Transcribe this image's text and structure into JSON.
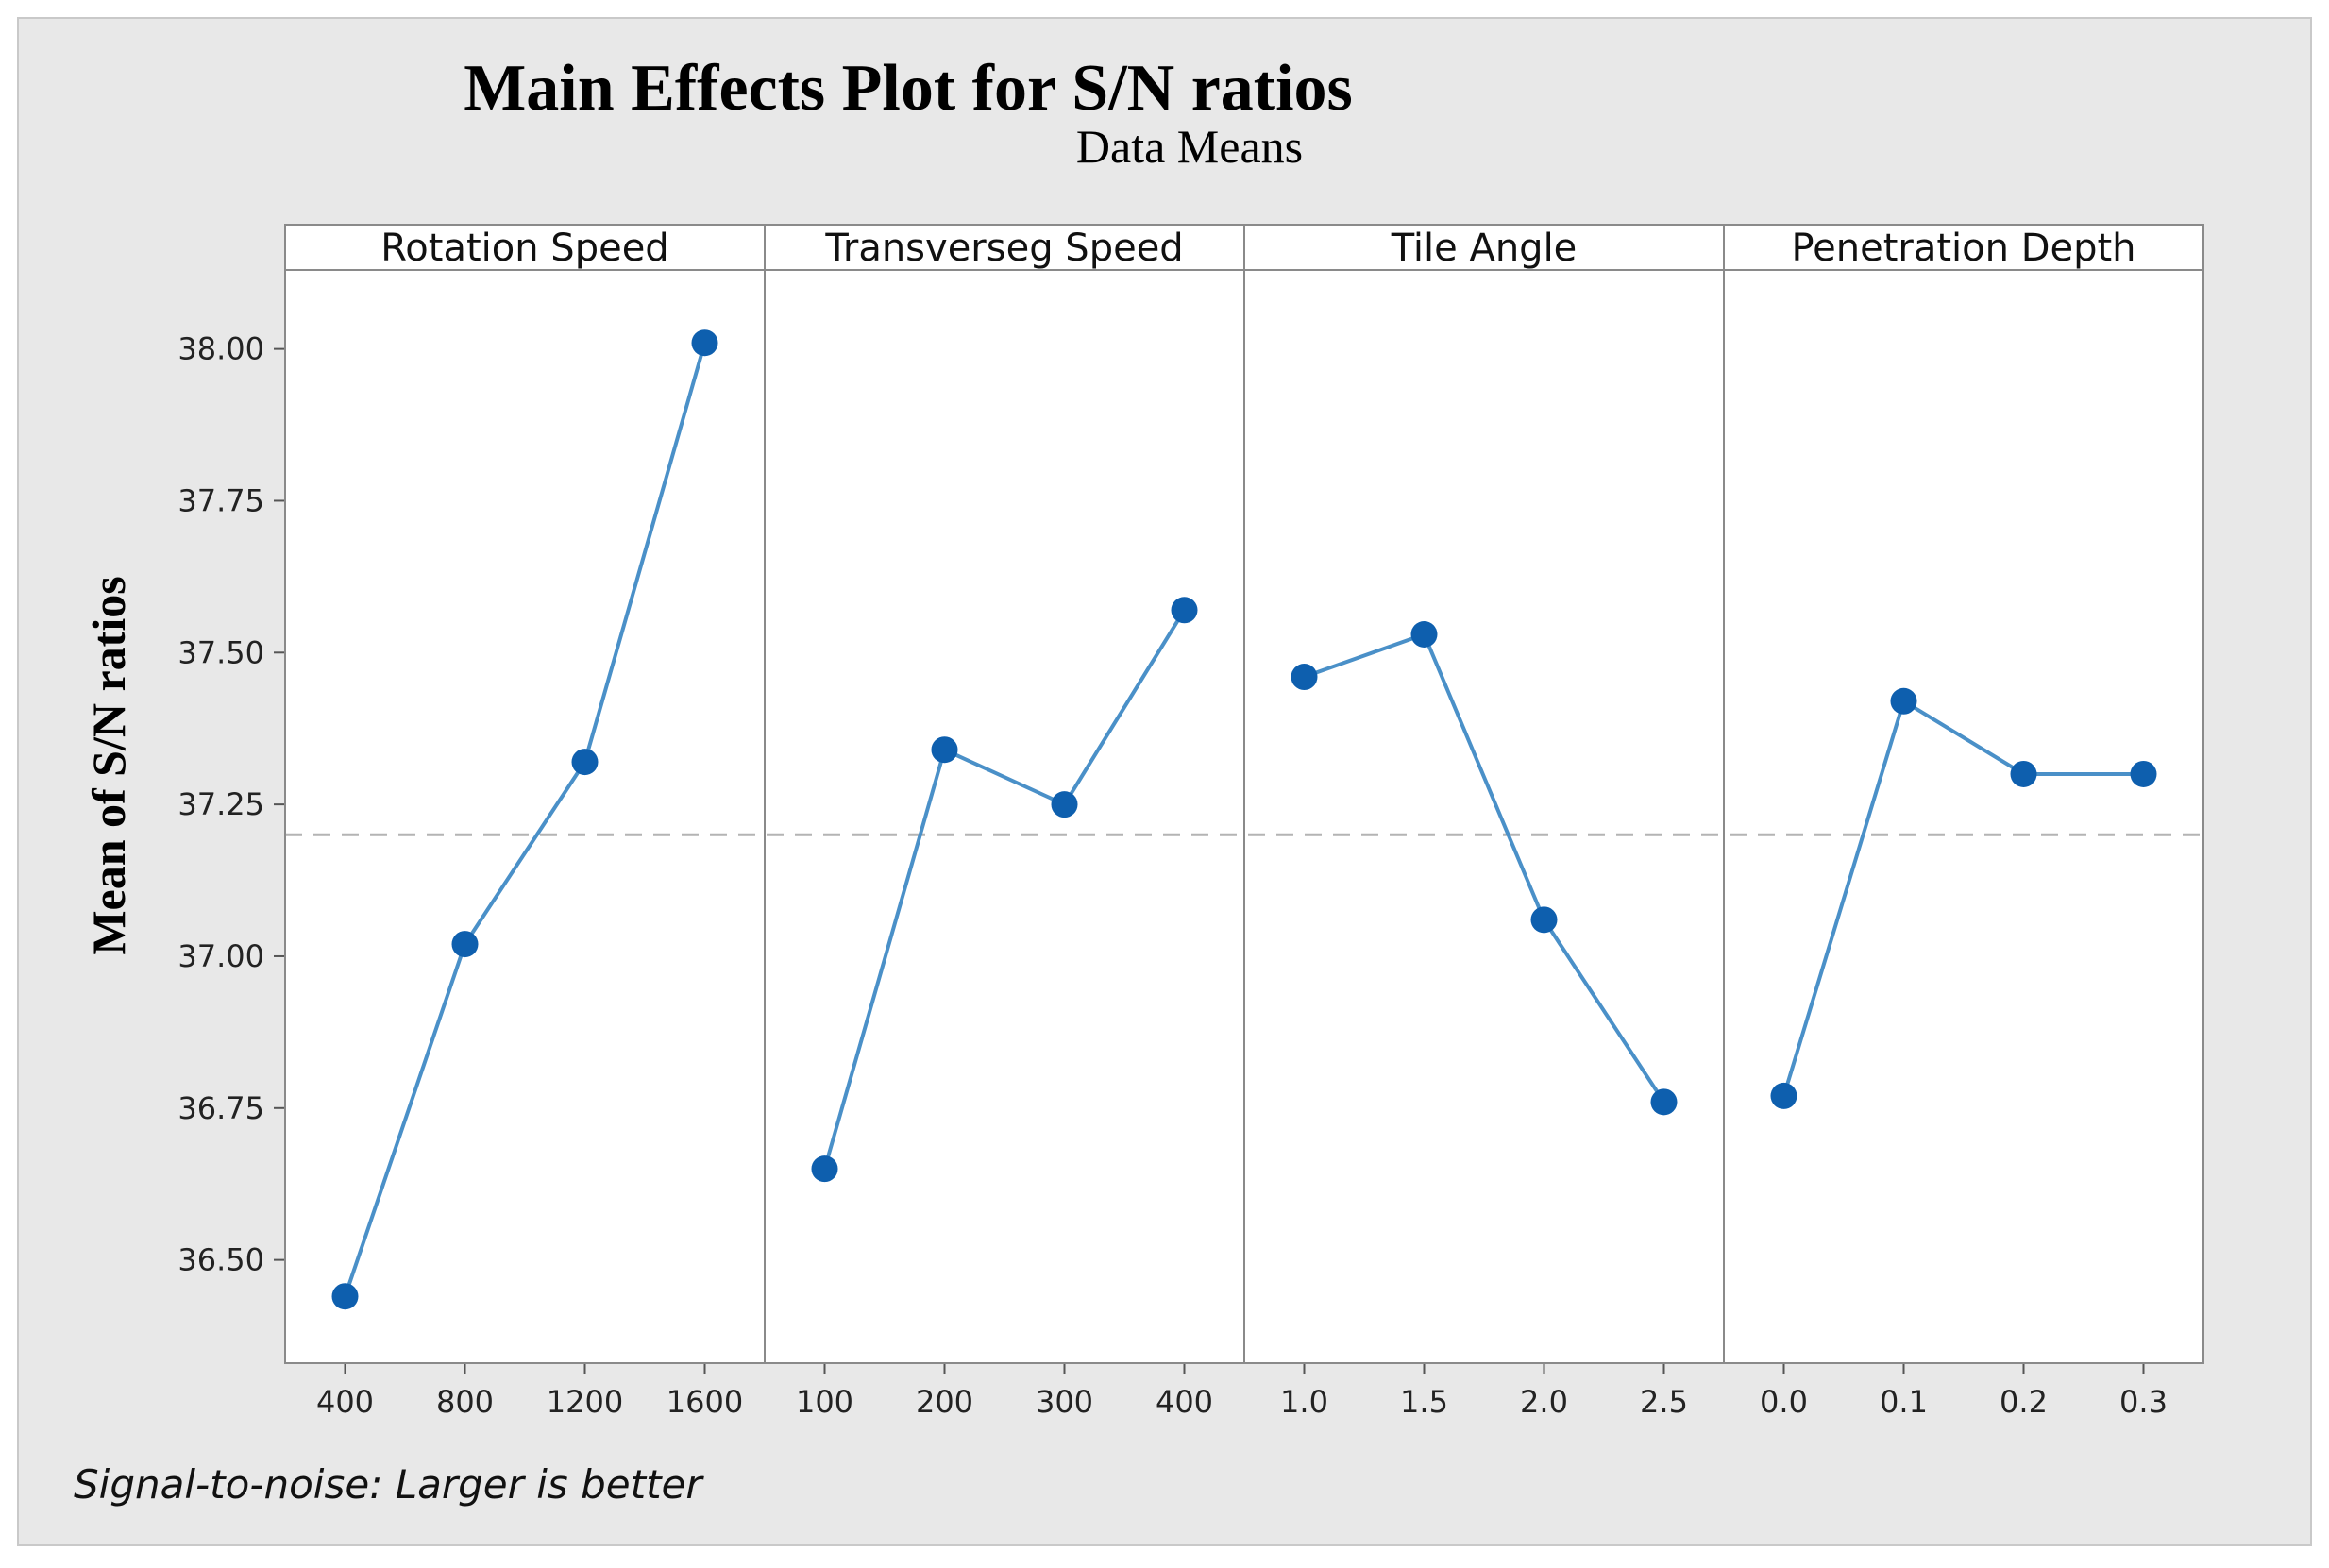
{
  "chart_data": {
    "type": "line",
    "title": "Main Effects Plot for S/N ratios",
    "subtitle": "Data Means",
    "ylabel": "Mean of S/N ratios",
    "ylim": [
      36.33,
      38.13
    ],
    "y_ticks": [
      "36.50",
      "36.75",
      "37.00",
      "37.25",
      "37.50",
      "37.75",
      "38.00"
    ],
    "y_tick_values": [
      36.5,
      36.75,
      37.0,
      37.25,
      37.5,
      37.75,
      38.0
    ],
    "reference_line": 37.2,
    "grid": false,
    "line_color": "#4a90c8",
    "marker_color": "#0e5fae",
    "panels": [
      {
        "name": "Rotation Speed",
        "categories": [
          "400",
          "800",
          "1200",
          "1600"
        ],
        "values": [
          36.44,
          37.02,
          37.32,
          38.01
        ]
      },
      {
        "name": "Transverseg Speed",
        "categories": [
          "100",
          "200",
          "300",
          "400"
        ],
        "values": [
          36.65,
          37.34,
          37.25,
          37.57
        ]
      },
      {
        "name": "Tile Angle",
        "categories": [
          "1.0",
          "1.5",
          "2.0",
          "2.5"
        ],
        "values": [
          37.46,
          37.53,
          37.06,
          36.76
        ]
      },
      {
        "name": "Penetration Depth",
        "categories": [
          "0.0",
          "0.1",
          "0.2",
          "0.3"
        ],
        "values": [
          36.77,
          37.42,
          37.3,
          37.3
        ]
      }
    ]
  },
  "footnote": "Signal-to-noise: Larger is better"
}
